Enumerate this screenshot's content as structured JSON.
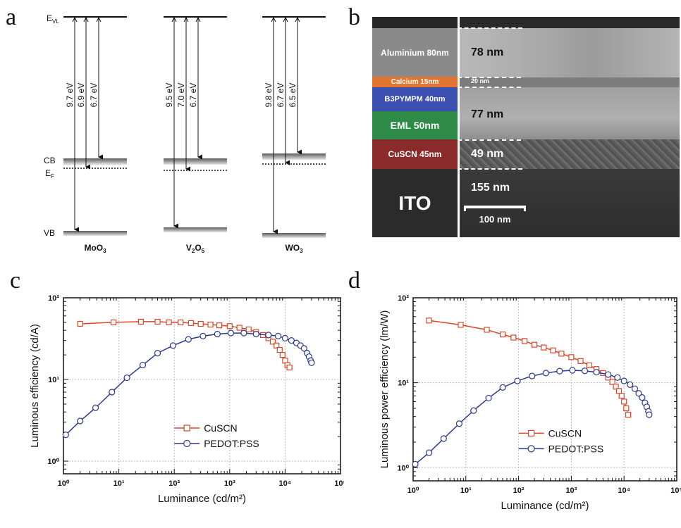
{
  "panel_labels": {
    "a": "a",
    "b": "b",
    "c": "c",
    "d": "d"
  },
  "panel_a": {
    "evl_main": "E",
    "evl_sub": "VL",
    "cb": "CB",
    "ef_main": "E",
    "ef_sub": "F",
    "vb": "VB",
    "materials": [
      {
        "base": "MoO",
        "sub1": "3",
        "mid": "",
        "sub2": "",
        "energies": [
          "9.7 eV",
          "6.9 eV",
          "6.7 eV"
        ]
      },
      {
        "base": "V",
        "sub1": "2",
        "mid": "O",
        "sub2": "5",
        "energies": [
          "9.5 eV",
          "7.0 eV",
          "6.7 eV"
        ]
      },
      {
        "base": "WO",
        "sub1": "3",
        "mid": "",
        "sub2": "",
        "energies": [
          "9.8 eV",
          "6.7 eV",
          "6.5 eV"
        ]
      }
    ]
  },
  "panel_b": {
    "layers": [
      {
        "label": "Aluminium 80nm",
        "color": "#8a8a8a"
      },
      {
        "label": "Calcium 15nm",
        "color": "#e0762f"
      },
      {
        "label": "B3PYMPM  40nm",
        "color": "#3b4fb0"
      },
      {
        "label": "EML 50nm",
        "color": "#2e8b47"
      },
      {
        "label": "CuSCN  45nm",
        "color": "#8b2a2a"
      },
      {
        "label": "ITO",
        "color": "#2b2b2b"
      }
    ],
    "measurements": [
      "78 nm",
      "20 nm",
      "77 nm",
      "49 nm",
      "155 nm"
    ],
    "scale_bar": "100 nm"
  },
  "chart_data": [
    {
      "type": "line",
      "panel": "c",
      "xlabel": "Luminance (cd/m²)",
      "ylabel": "Luminous efficiency (cd/A)",
      "xscale": "log",
      "yscale": "log",
      "xlim": [
        1,
        100000
      ],
      "ylim": [
        0.7,
        100
      ],
      "x_ticks": [
        "10⁰",
        "10¹",
        "10²",
        "10³",
        "10⁴",
        "10⁵"
      ],
      "y_ticks": [
        "10⁰",
        "10¹",
        "10²"
      ],
      "grid": true,
      "legend": "center-right",
      "series": [
        {
          "name": "CuSCN",
          "color": "#d9472b",
          "marker": "square",
          "x": [
            2,
            8,
            25,
            50,
            80,
            130,
            200,
            300,
            450,
            650,
            1000,
            1500,
            2200,
            3000,
            4000,
            5000,
            6000,
            7000,
            8000,
            9000,
            10000,
            11000,
            12000
          ],
          "y": [
            48,
            50,
            51,
            51,
            50,
            50,
            49,
            48,
            47,
            46,
            45,
            43,
            41,
            38,
            35,
            32,
            29,
            26,
            23,
            20,
            17,
            15,
            14
          ]
        },
        {
          "name": "PEDOT:PSS",
          "color": "#2b3a8c",
          "marker": "circle",
          "x": [
            1.1,
            2,
            3.8,
            7.5,
            14,
            27,
            50,
            95,
            180,
            330,
            600,
            1050,
            1800,
            3000,
            5000,
            7500,
            10000,
            13000,
            16000,
            19000,
            22000,
            25000,
            27000,
            29000,
            30000
          ],
          "y": [
            2.1,
            3.1,
            4.5,
            7,
            10.5,
            15,
            21,
            26,
            31,
            34,
            36,
            37,
            37,
            36,
            35,
            34,
            32,
            30,
            28,
            26,
            24,
            21,
            19,
            17,
            16
          ]
        }
      ]
    },
    {
      "type": "line",
      "panel": "d",
      "xlabel": "Luminance (cd/m²)",
      "ylabel": "Luminous power efficiency (lm/W)",
      "xscale": "log",
      "yscale": "log",
      "xlim": [
        1,
        100000
      ],
      "ylim": [
        0.7,
        100
      ],
      "x_ticks": [
        "10⁰",
        "10¹",
        "10²",
        "10³",
        "10⁴",
        "10⁵"
      ],
      "y_ticks": [
        "10⁰",
        "10¹",
        "10²"
      ],
      "grid": true,
      "legend": "center-right",
      "series": [
        {
          "name": "CuSCN",
          "color": "#d9472b",
          "marker": "square",
          "x": [
            2,
            8,
            25,
            50,
            80,
            130,
            200,
            300,
            450,
            650,
            1000,
            1500,
            2200,
            3000,
            4000,
            5000,
            6000,
            7000,
            8000,
            9000,
            10000,
            11000,
            12000
          ],
          "y": [
            54,
            48,
            42,
            37,
            34,
            31,
            28,
            26,
            24,
            22,
            20,
            18,
            16,
            14.5,
            13,
            11.5,
            10.2,
            9,
            8,
            7,
            6,
            5,
            4.2
          ]
        },
        {
          "name": "PEDOT:PSS",
          "color": "#2b3a8c",
          "marker": "circle",
          "x": [
            1.1,
            2,
            3.8,
            7.5,
            14,
            27,
            50,
            95,
            180,
            330,
            600,
            1050,
            1800,
            3000,
            5000,
            7500,
            10000,
            13000,
            16000,
            19000,
            22000,
            25000,
            27000,
            29000,
            30000
          ],
          "y": [
            1.1,
            1.5,
            2.2,
            3.3,
            4.7,
            6.6,
            8.8,
            10.5,
            12,
            13,
            13.7,
            14,
            13.8,
            13.3,
            12.5,
            11.5,
            10.5,
            9.5,
            8.5,
            7.5,
            6.7,
            5.8,
            5.2,
            4.6,
            4.2
          ]
        }
      ]
    }
  ]
}
